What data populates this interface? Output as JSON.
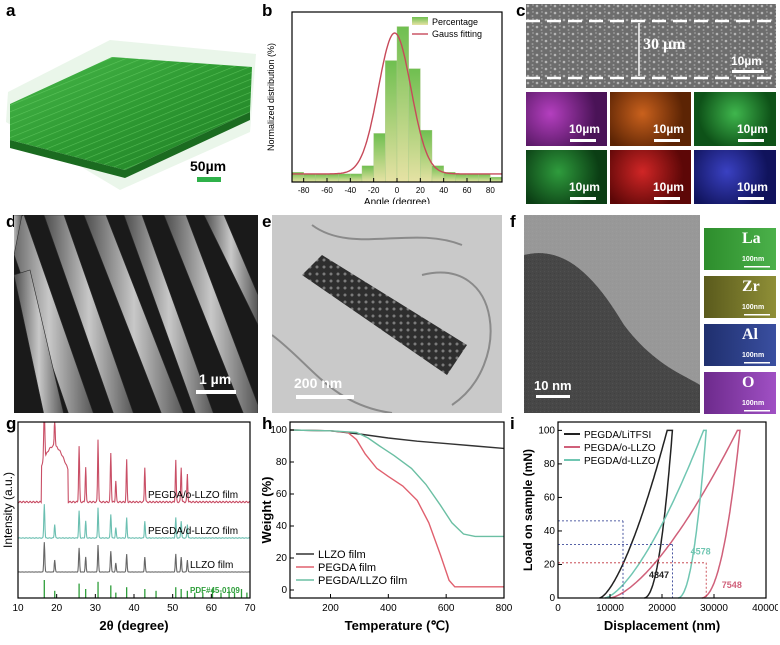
{
  "panels": {
    "a": {
      "label": "a",
      "scale_bar": "50µm"
    },
    "b": {
      "label": "b"
    },
    "c": {
      "label": "c",
      "thickness": "30 µm",
      "scale_bar_main": "10µm",
      "tile_scale": "10µm"
    },
    "d": {
      "label": "d",
      "scale_bar": "1 µm"
    },
    "e": {
      "label": "e",
      "scale_bar": "200 nm"
    },
    "f": {
      "label": "f",
      "scale_bar": "10 nm",
      "maps": [
        {
          "element": "La",
          "scale": "100nm"
        },
        {
          "element": "Zr",
          "scale": "100nm"
        },
        {
          "element": "Al",
          "scale": "100nm"
        },
        {
          "element": "O",
          "scale": "100nm"
        }
      ]
    },
    "g": {
      "label": "g"
    },
    "h": {
      "label": "h"
    },
    "i": {
      "label": "i"
    }
  },
  "chart_data": [
    {
      "id": "b",
      "type": "bar",
      "xlabel": "Angle (degree)",
      "ylabel": "Normalized distribution (%)",
      "xlim": [
        -90,
        90
      ],
      "xticks": [
        -80,
        -60,
        -40,
        -20,
        0,
        20,
        40,
        60,
        80
      ],
      "bin_edges": [
        -90,
        -80,
        -70,
        -60,
        -50,
        -40,
        -30,
        -20,
        -10,
        0,
        10,
        20,
        30,
        40,
        50,
        60,
        70,
        80,
        90
      ],
      "values": [
        0.06,
        0.05,
        0.05,
        0.05,
        0.05,
        0.05,
        0.1,
        0.3,
        0.75,
        0.96,
        0.7,
        0.32,
        0.1,
        0.06,
        0.05,
        0.05,
        0.05,
        0.03
      ],
      "fit": {
        "mean": -2,
        "sigma": 14,
        "amplitude": 0.87,
        "baseline": 0.05
      },
      "legend": [
        "Percentage",
        "Gauss fitting"
      ],
      "colors": {
        "bar_top": "#6fbf50",
        "bar_bottom": "#e6e2a4",
        "fit": "#c74a5a"
      }
    },
    {
      "id": "g",
      "type": "line",
      "xlabel": "2θ (degree)",
      "ylabel": "Intensity (a.u.)",
      "xlim": [
        10,
        70
      ],
      "xticks": [
        10,
        20,
        30,
        40,
        50,
        60,
        70
      ],
      "series": [
        {
          "name": "PEGDA/o-LLZO film",
          "color": "#c94f66"
        },
        {
          "name": "PEGDA/d-LLZO film",
          "color": "#6bbfb1"
        },
        {
          "name": "LLZO film",
          "color": "#666666"
        }
      ],
      "reference": {
        "name": "PDF#45-0109",
        "color": "#2e9e3a",
        "positions": [
          16.8,
          19.5,
          25.8,
          27.5,
          30.7,
          34.0,
          35.3,
          38.1,
          42.8,
          45.7,
          50.8,
          52.2,
          53.8,
          55.7,
          57.8,
          60.3,
          62.5,
          64.6,
          66.0,
          67.8,
          69.2
        ],
        "heights": [
          1.0,
          0.4,
          0.8,
          0.5,
          0.9,
          0.7,
          0.3,
          0.6,
          0.5,
          0.4,
          0.6,
          0.5,
          0.4,
          0.3,
          0.3,
          0.5,
          0.3,
          0.4,
          0.3,
          0.5,
          0.3
        ]
      },
      "peaks": [
        16.8,
        19.5,
        25.8,
        27.5,
        30.7,
        34.0,
        35.3,
        38.1,
        42.8,
        50.8,
        52.2,
        53.8
      ]
    },
    {
      "id": "h",
      "type": "line",
      "xlabel": "Temperature (℃)",
      "ylabel": "Weight (%)",
      "xlim": [
        60,
        800
      ],
      "ylim": [
        -5,
        105
      ],
      "xticks": [
        200,
        400,
        600,
        800
      ],
      "yticks": [
        0,
        20,
        40,
        60,
        80,
        100
      ],
      "series": [
        {
          "name": "LLZO film",
          "color": "#333333",
          "x": [
            60,
            200,
            300,
            400,
            500,
            600,
            700,
            800
          ],
          "y": [
            100,
            99.5,
            97.5,
            95,
            93,
            91.5,
            90,
            88.5
          ]
        },
        {
          "name": "PEGDA film",
          "color": "#e0606e",
          "x": [
            60,
            200,
            260,
            290,
            320,
            360,
            400,
            450,
            500,
            540,
            580,
            610,
            630,
            660,
            800
          ],
          "y": [
            100,
            99.5,
            98.5,
            94,
            85,
            76,
            71,
            65,
            56,
            42,
            22,
            6,
            2,
            2,
            2
          ]
        },
        {
          "name": "PEGDA/LLZO film",
          "color": "#6bbfa3",
          "x": [
            60,
            200,
            290,
            330,
            370,
            420,
            480,
            530,
            580,
            620,
            660,
            700,
            800
          ],
          "y": [
            100,
            99.5,
            98.5,
            95,
            90,
            84,
            76,
            66,
            53,
            42,
            35,
            33.5,
            33.5
          ]
        }
      ]
    },
    {
      "id": "i",
      "type": "line",
      "xlabel": "Displacement (nm)",
      "ylabel": "Load on sample (mN)",
      "xlim": [
        0,
        40000
      ],
      "ylim": [
        0,
        105
      ],
      "xticks": [
        0,
        10000,
        20000,
        30000,
        40000
      ],
      "yticks": [
        0,
        20,
        40,
        60,
        80,
        100
      ],
      "series": [
        {
          "name": "PEGDA/LiTFSI",
          "color": "#222222"
        },
        {
          "name": "PEGDA/o-LLZO",
          "color": "#d0607a"
        },
        {
          "name": "PEGDA/d-LLZO",
          "color": "#70c6b2"
        }
      ],
      "annotations": [
        {
          "text": "4847",
          "color": "#222222"
        },
        {
          "text": "4578",
          "color": "#70c6b2"
        },
        {
          "text": "7548",
          "color": "#d0607a"
        }
      ]
    }
  ]
}
